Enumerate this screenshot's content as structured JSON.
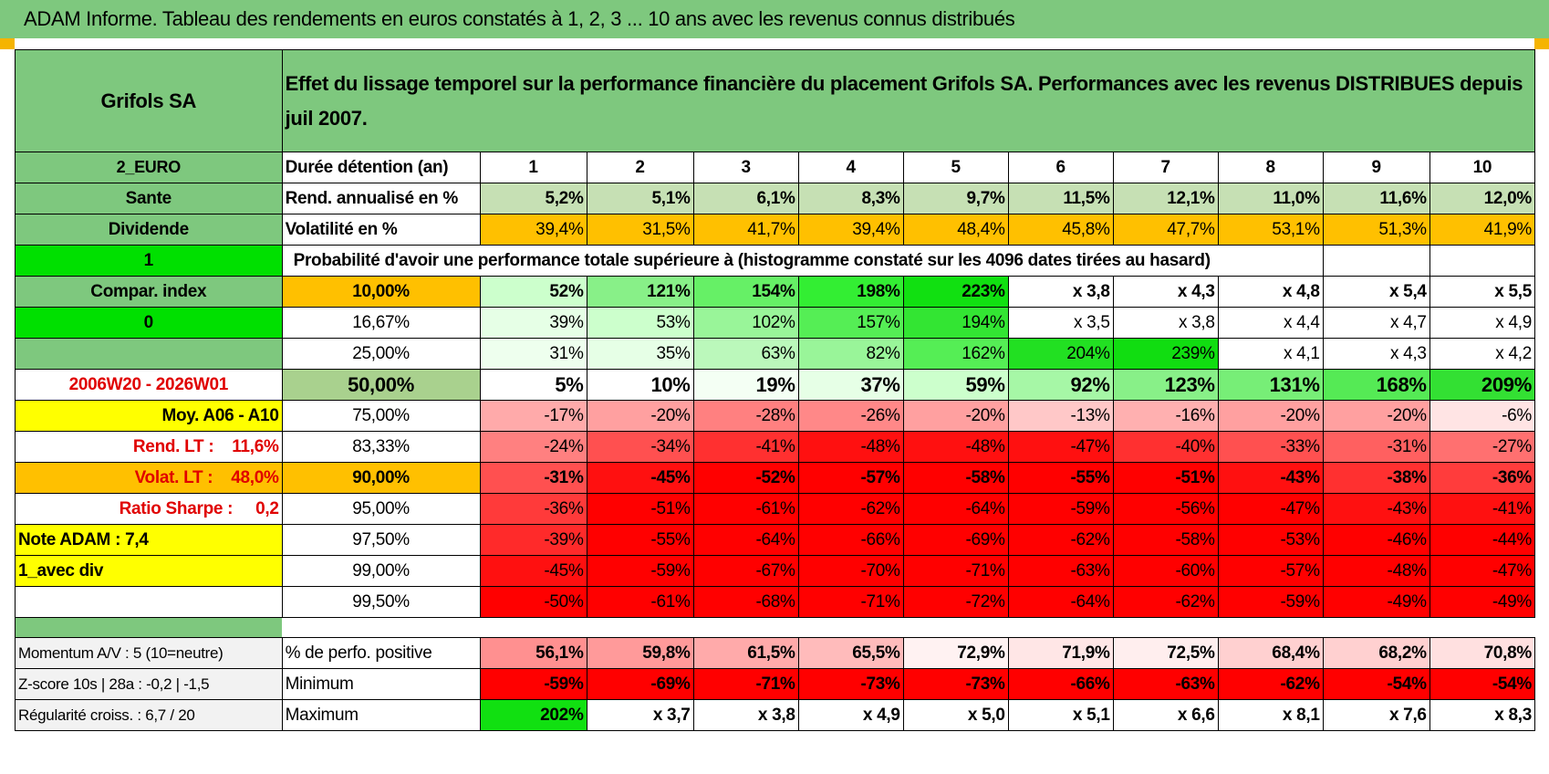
{
  "title": "ADAM Informe. Tableau des rendements en euros constatés à 1, 2, 3 ... 10 ans avec les revenus connus distribués",
  "header": {
    "company": "Grifols SA",
    "description": "Effet du lissage temporel sur la performance financière du placement Grifols SA. Performances avec les revenus DISTRIBUES depuis juil 2007."
  },
  "rows": [
    {
      "left": "2_EURO",
      "label": "Durée détention (an)",
      "values": [
        "1",
        "2",
        "3",
        "4",
        "5",
        "6",
        "7",
        "8",
        "9",
        "10"
      ]
    },
    {
      "left": "Sante",
      "label": "Rend. annualisé en %",
      "values": [
        "5,2%",
        "5,1%",
        "6,1%",
        "8,3%",
        "9,7%",
        "11,5%",
        "12,1%",
        "11,0%",
        "11,6%",
        "12,0%"
      ]
    },
    {
      "left": "Dividende",
      "label": "Volatilité en %",
      "values": [
        "39,4%",
        "31,5%",
        "41,7%",
        "39,4%",
        "48,4%",
        "45,8%",
        "47,7%",
        "53,1%",
        "51,3%",
        "41,9%"
      ]
    },
    {
      "left": "1",
      "label": "Probabilité d'avoir une performance totale supérieure à (histogramme constaté sur les 4096 dates tirées au hasard)"
    },
    {
      "left": "Compar. index",
      "label": "10,00%",
      "values": [
        "52%",
        "121%",
        "154%",
        "198%",
        "223%",
        "x 3,8",
        "x 4,3",
        "x 4,8",
        "x 5,4",
        "x 5,5"
      ]
    },
    {
      "left": "0",
      "label": "16,67%",
      "values": [
        "39%",
        "53%",
        "102%",
        "157%",
        "194%",
        "x 3,5",
        "x 3,8",
        "x 4,4",
        "x 4,7",
        "x 4,9"
      ]
    },
    {
      "left": "",
      "label": "25,00%",
      "values": [
        "31%",
        "35%",
        "63%",
        "82%",
        "162%",
        "204%",
        "239%",
        "x 4,1",
        "x 4,3",
        "x 4,2"
      ]
    },
    {
      "left": "2006W20 - 2026W01",
      "label": "50,00%",
      "values": [
        "5%",
        "10%",
        "19%",
        "37%",
        "59%",
        "92%",
        "123%",
        "131%",
        "168%",
        "209%"
      ]
    },
    {
      "left": "Moy. A06 - A10",
      "label": "75,00%",
      "values": [
        "-17%",
        "-20%",
        "-28%",
        "-26%",
        "-20%",
        "-13%",
        "-16%",
        "-20%",
        "-20%",
        "-6%"
      ]
    },
    {
      "left": "Rend. LT :    11,6%",
      "label": "83,33%",
      "values": [
        "-24%",
        "-34%",
        "-41%",
        "-48%",
        "-48%",
        "-47%",
        "-40%",
        "-33%",
        "-31%",
        "-27%"
      ]
    },
    {
      "left": "Volat. LT :    48,0%",
      "label": "90,00%",
      "values": [
        "-31%",
        "-45%",
        "-52%",
        "-57%",
        "-58%",
        "-55%",
        "-51%",
        "-43%",
        "-38%",
        "-36%"
      ]
    },
    {
      "left": "Ratio Sharpe :     0,2",
      "label": "95,00%",
      "values": [
        "-36%",
        "-51%",
        "-61%",
        "-62%",
        "-64%",
        "-59%",
        "-56%",
        "-47%",
        "-43%",
        "-41%"
      ]
    },
    {
      "left": "Note ADAM : 7,4",
      "label": "97,50%",
      "values": [
        "-39%",
        "-55%",
        "-64%",
        "-66%",
        "-69%",
        "-62%",
        "-58%",
        "-53%",
        "-46%",
        "-44%"
      ]
    },
    {
      "left": "1_avec div",
      "label": "99,00%",
      "values": [
        "-45%",
        "-59%",
        "-67%",
        "-70%",
        "-71%",
        "-63%",
        "-60%",
        "-57%",
        "-48%",
        "-47%"
      ]
    },
    {
      "left": "",
      "label": "99,50%",
      "values": [
        "-50%",
        "-61%",
        "-68%",
        "-71%",
        "-72%",
        "-64%",
        "-62%",
        "-59%",
        "-49%",
        "-49%"
      ]
    }
  ],
  "footer": [
    {
      "left": "Momentum A/V : 5 (10=neutre)",
      "label": "% de perfo. positive",
      "values": [
        "56,1%",
        "59,8%",
        "61,5%",
        "65,5%",
        "72,9%",
        "71,9%",
        "72,5%",
        "68,4%",
        "68,2%",
        "70,8%"
      ]
    },
    {
      "left": "Z-score 10s | 28a : -0,2 | -1,5",
      "label": "Minimum",
      "values": [
        "-59%",
        "-69%",
        "-71%",
        "-73%",
        "-73%",
        "-66%",
        "-63%",
        "-62%",
        "-54%",
        "-54%"
      ]
    },
    {
      "left": "Régularité croiss. : 6,7 / 20",
      "label": "Maximum",
      "values": [
        "202%",
        "x 3,7",
        "x 3,8",
        "x 4,9",
        "x 5,0",
        "x 5,1",
        "x 6,6",
        "x 8,1",
        "x 7,6",
        "x 8,3"
      ]
    }
  ],
  "colors": {
    "title_green": "#7ec87e",
    "light_green": "#a9d18e",
    "bright_green": "#00e000",
    "orange": "#ffc000",
    "yellow": "#ffff00",
    "red_text": "#e00000"
  },
  "cell_colors": [
    null,
    [
      "#c6e0b4",
      "#c6e0b4",
      "#c6e0b4",
      "#c6e0b4",
      "#c6e0b4",
      "#c6e0b4",
      "#c6e0b4",
      "#c6e0b4",
      "#c6e0b4",
      "#c6e0b4"
    ],
    [
      "#ffc000",
      "#ffc000",
      "#ffc000",
      "#ffc000",
      "#ffc000",
      "#ffc000",
      "#ffc000",
      "#ffc000",
      "#ffc000",
      "#ffc000"
    ],
    null,
    [
      "#ccffcc",
      "#88f088",
      "#66f066",
      "#33ee33",
      "#11e011",
      "#ffffff",
      "#ffffff",
      "#ffffff",
      "#ffffff",
      "#ffffff"
    ],
    [
      "#e6ffe6",
      "#ccffcc",
      "#99f599",
      "#55ee55",
      "#33e533",
      "#ffffff",
      "#ffffff",
      "#ffffff",
      "#ffffff",
      "#ffffff"
    ],
    [
      "#eeffee",
      "#e6ffe6",
      "#bbf8bb",
      "#99f599",
      "#55ee55",
      "#22e022",
      "#11dd11",
      "#ffffff",
      "#ffffff",
      "#ffffff"
    ],
    [
      "#ffffff",
      "#ffffff",
      "#f4fff4",
      "#e6ffe6",
      "#ccffcc",
      "#a6f7a6",
      "#88f088",
      "#77ee77",
      "#55ea55",
      "#33e033"
    ],
    [
      "#ffaaaa",
      "#ffa0a0",
      "#ff8080",
      "#ff8888",
      "#ffa0a0",
      "#ffc8c8",
      "#ffb0b0",
      "#ffa0a0",
      "#ffa0a0",
      "#ffe4e4"
    ],
    [
      "#ff8080",
      "#ff5050",
      "#ff3030",
      "#ff1010",
      "#ff1010",
      "#ff1010",
      "#ff3030",
      "#ff5050",
      "#ff6060",
      "#ff7070"
    ],
    [
      "#ff5050",
      "#ff1010",
      "#ff0000",
      "#ff0000",
      "#ff0000",
      "#ff0000",
      "#ff0000",
      "#ff1010",
      "#ff3030",
      "#ff3c3c"
    ],
    [
      "#ff3a3a",
      "#ff0000",
      "#ff0000",
      "#ff0000",
      "#ff0000",
      "#ff0000",
      "#ff0000",
      "#ff0000",
      "#ff1010",
      "#ff1010"
    ],
    [
      "#ff2a2a",
      "#ff0000",
      "#ff0000",
      "#ff0000",
      "#ff0000",
      "#ff0000",
      "#ff0000",
      "#ff0000",
      "#ff0000",
      "#ff0000"
    ],
    [
      "#ff1010",
      "#ff0000",
      "#ff0000",
      "#ff0000",
      "#ff0000",
      "#ff0000",
      "#ff0000",
      "#ff0000",
      "#ff0000",
      "#ff0000"
    ],
    [
      "#ff0000",
      "#ff0000",
      "#ff0000",
      "#ff0000",
      "#ff0000",
      "#ff0000",
      "#ff0000",
      "#ff0000",
      "#ff0000",
      "#ff0000"
    ]
  ],
  "footer_colors": [
    [
      "#ff9090",
      "#ff9a9a",
      "#ffaaaa",
      "#ffbbbb",
      "#fff2f2",
      "#ffe6e6",
      "#ffeeee",
      "#ffd0d0",
      "#ffd0d0",
      "#ffe0e0"
    ],
    [
      "#ff0000",
      "#ff0000",
      "#ff0000",
      "#ff0000",
      "#ff0000",
      "#ff0000",
      "#ff0000",
      "#ff0000",
      "#ff0000",
      "#ff0000"
    ],
    [
      "#11e011",
      "#ffffff",
      "#ffffff",
      "#ffffff",
      "#ffffff",
      "#ffffff",
      "#ffffff",
      "#ffffff",
      "#ffffff",
      "#ffffff"
    ]
  ]
}
